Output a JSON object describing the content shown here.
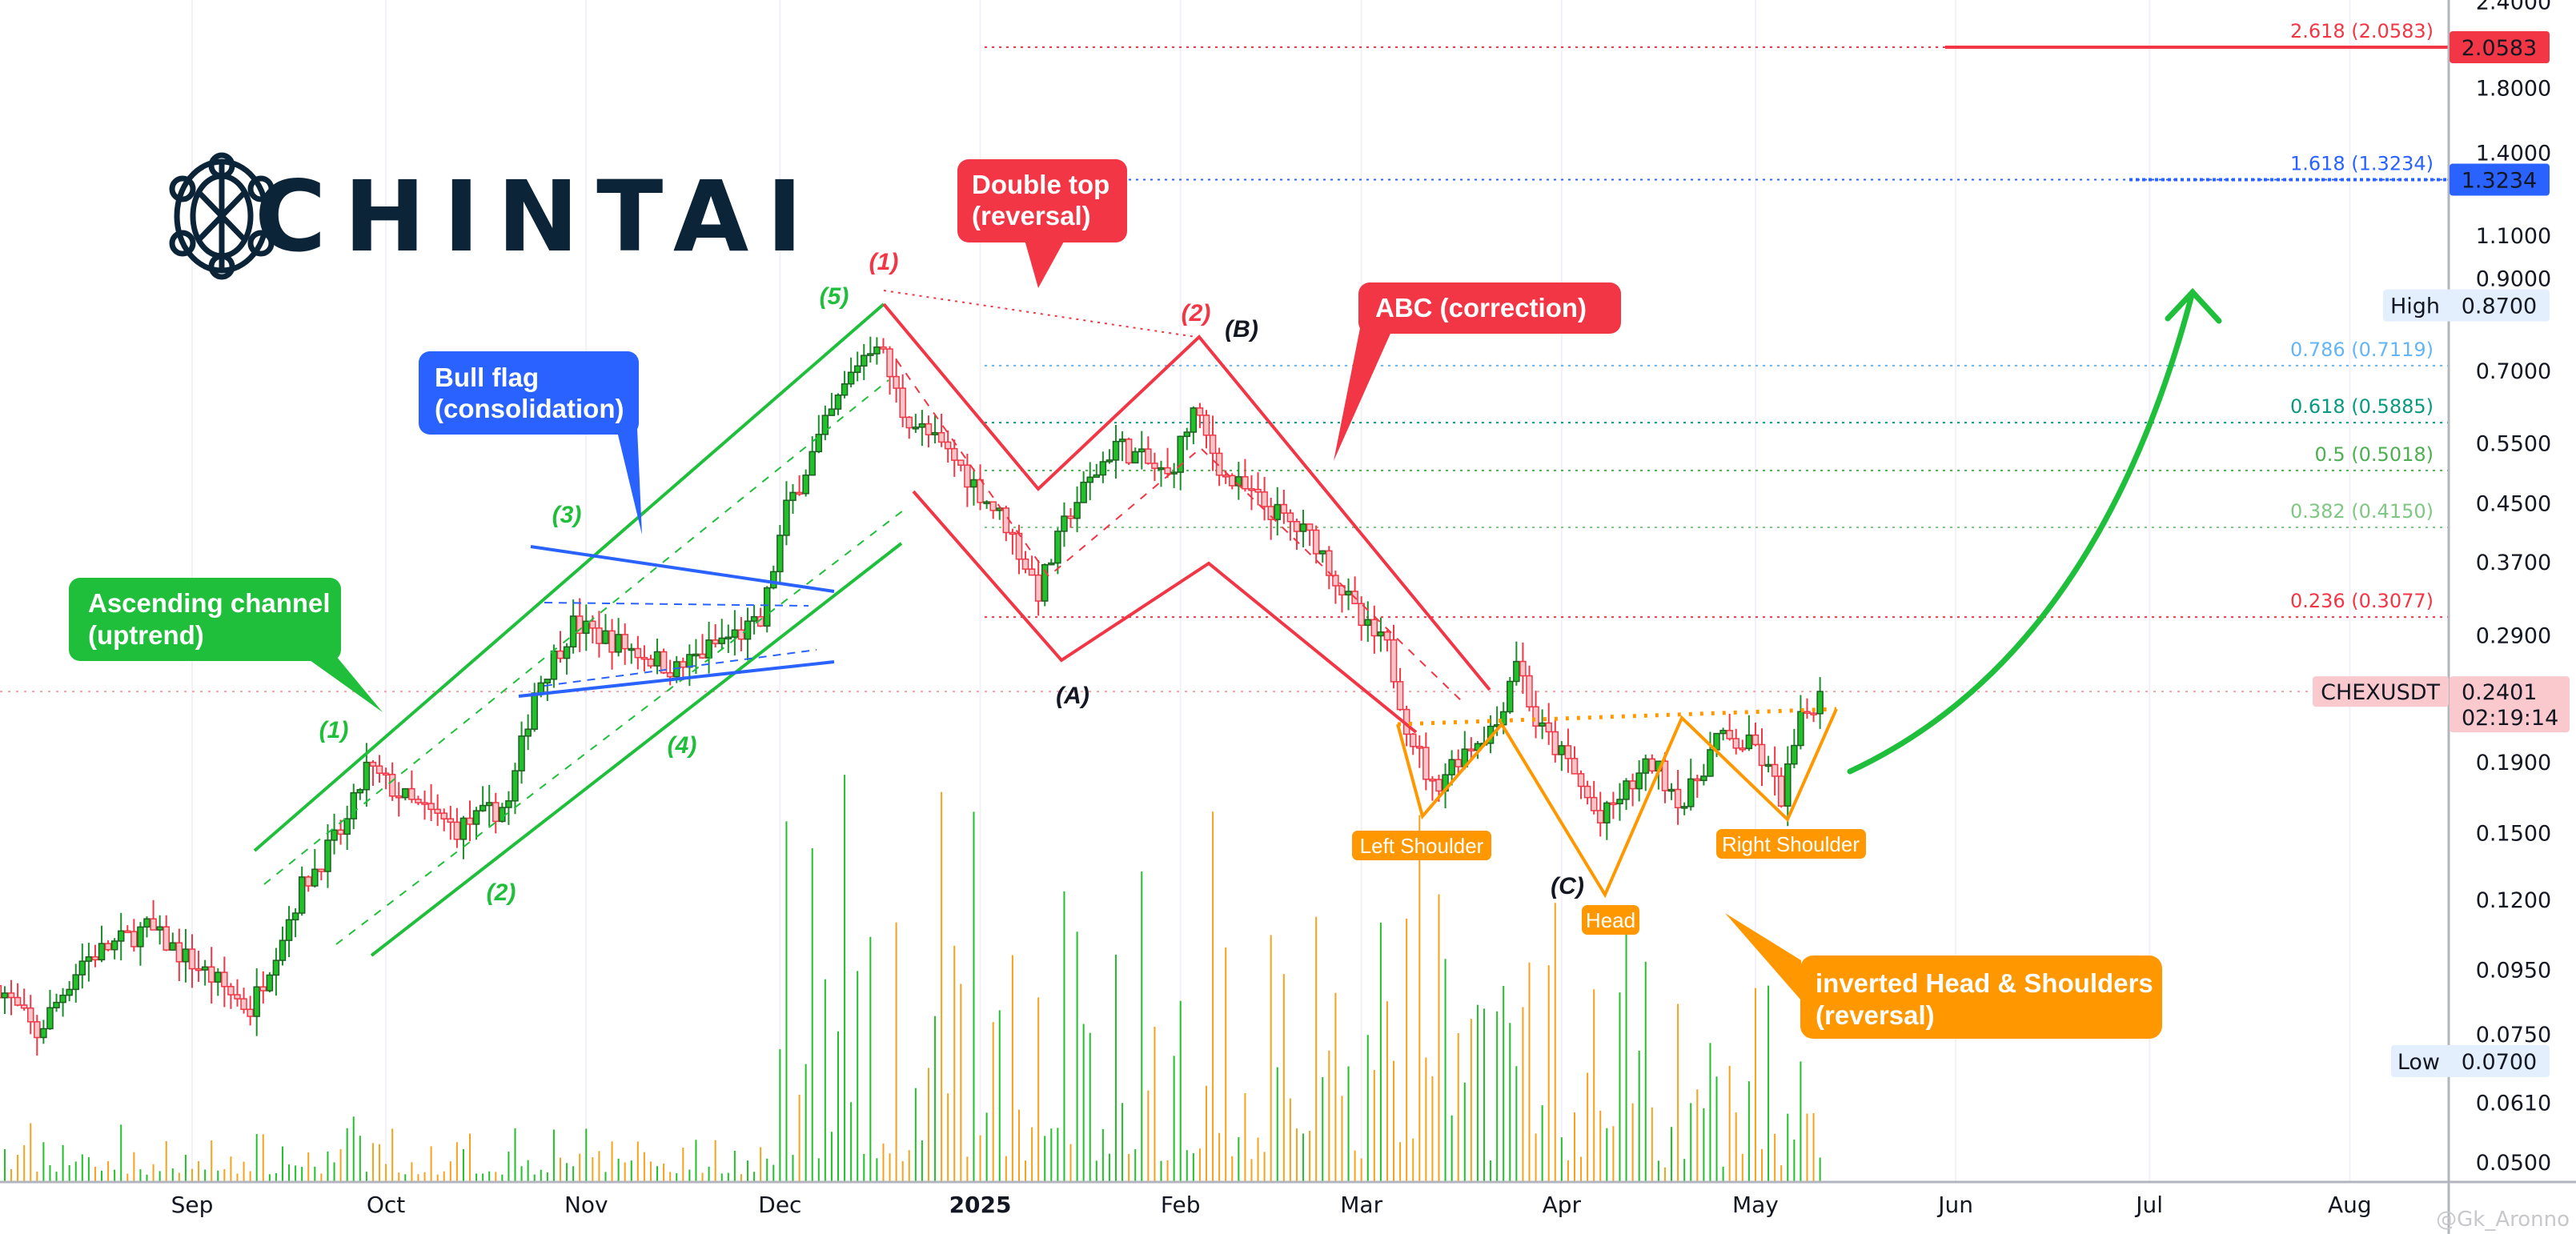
{
  "logo": {
    "text": "CHINTAI"
  },
  "watermark": "@Gk_Aronno",
  "chart_data": {
    "type": "candlestick",
    "symbol": "CHEXUSDT",
    "interval": "daily",
    "y_scale": "log",
    "ylim": [
      0.048,
      2.45
    ],
    "grid": "vertical month lines",
    "y_ticks": [
      "2.4000",
      "1.8000",
      "1.4000",
      "1.1000",
      "0.9000",
      "0.7000",
      "0.5500",
      "0.4500",
      "0.3700",
      "0.2900",
      "0.1900",
      "0.1500",
      "0.1200",
      "0.0950",
      "0.0750",
      "0.0610",
      "0.0500"
    ],
    "x_ticks": [
      {
        "label": "Sep",
        "date": "2024-09-01"
      },
      {
        "label": "Oct",
        "date": "2024-10-01"
      },
      {
        "label": "Nov",
        "date": "2024-11-01"
      },
      {
        "label": "Dec",
        "date": "2024-12-01"
      },
      {
        "label": "2025",
        "date": "2025-01-01",
        "bold": true
      },
      {
        "label": "Feb",
        "date": "2025-02-01"
      },
      {
        "label": "Mar",
        "date": "2025-03-01"
      },
      {
        "label": "Apr",
        "date": "2025-04-01"
      },
      {
        "label": "May",
        "date": "2025-05-01"
      },
      {
        "label": "Jun",
        "date": "2025-06-01"
      },
      {
        "label": "Jul",
        "date": "2025-07-01"
      },
      {
        "label": "Aug",
        "date": "2025-08-01"
      }
    ],
    "price_path": [
      [
        "2024-08-02",
        0.09
      ],
      [
        "2024-08-08",
        0.0765
      ],
      [
        "2024-08-15",
        0.098
      ],
      [
        "2024-08-25",
        0.109
      ],
      [
        "2024-09-05",
        0.091
      ],
      [
        "2024-09-10",
        0.083
      ],
      [
        "2024-09-18",
        0.125
      ],
      [
        "2024-09-25",
        0.155
      ],
      [
        "2024-09-28",
        0.186
      ],
      [
        "2024-10-05",
        0.165
      ],
      [
        "2024-10-12",
        0.152
      ],
      [
        "2024-10-20",
        0.165
      ],
      [
        "2024-10-24",
        0.241
      ],
      [
        "2024-10-30",
        0.3
      ],
      [
        "2024-11-08",
        0.277
      ],
      [
        "2024-11-15",
        0.258
      ],
      [
        "2024-11-22",
        0.285
      ],
      [
        "2024-11-28",
        0.3
      ],
      [
        "2024-12-02",
        0.44
      ],
      [
        "2024-12-08",
        0.58
      ],
      [
        "2024-12-13",
        0.72
      ],
      [
        "2024-12-16",
        0.78
      ],
      [
        "2024-12-20",
        0.61
      ],
      [
        "2024-12-28",
        0.52
      ],
      [
        "2025-01-05",
        0.42
      ],
      [
        "2025-01-10",
        0.335
      ],
      [
        "2025-01-15",
        0.44
      ],
      [
        "2025-01-22",
        0.55
      ],
      [
        "2025-01-30",
        0.49
      ],
      [
        "2025-02-03",
        0.61
      ],
      [
        "2025-02-08",
        0.49
      ],
      [
        "2025-02-15",
        0.44
      ],
      [
        "2025-02-22",
        0.395
      ],
      [
        "2025-03-01",
        0.3
      ],
      [
        "2025-03-05",
        0.277
      ],
      [
        "2025-03-08",
        0.216
      ],
      [
        "2025-03-12",
        0.174
      ],
      [
        "2025-03-16",
        0.194
      ],
      [
        "2025-03-22",
        0.216
      ],
      [
        "2025-03-25",
        0.27
      ],
      [
        "2025-03-28",
        0.216
      ],
      [
        "2025-04-02",
        0.189
      ],
      [
        "2025-04-07",
        0.155
      ],
      [
        "2025-04-10",
        0.169
      ],
      [
        "2025-04-15",
        0.189
      ],
      [
        "2025-04-20",
        0.165
      ],
      [
        "2025-04-25",
        0.205
      ],
      [
        "2025-05-01",
        0.199
      ],
      [
        "2025-05-05",
        0.169
      ],
      [
        "2025-05-08",
        0.216
      ],
      [
        "2025-05-11",
        0.2401
      ]
    ],
    "last_price": {
      "value": "0.2401",
      "price": 0.2401,
      "countdown": "02:19:14",
      "color": "#f9c9cd"
    },
    "high": {
      "label": "High",
      "value": "0.8700",
      "price": 0.87
    },
    "low": {
      "label": "Low",
      "value": "0.0700",
      "price": 0.07
    },
    "fib_levels": [
      {
        "label": "2.618 (2.0583)",
        "price": 2.0583,
        "badge": "2.0583",
        "color": "#f23645"
      },
      {
        "label": "1.618 (1.3234)",
        "price": 1.3234,
        "badge": "1.3234",
        "color": "#2962ff"
      },
      {
        "label": "0.786 (0.7119)",
        "price": 0.7119,
        "color": "#64b5f6"
      },
      {
        "label": "0.618 (0.5885)",
        "price": 0.5885,
        "color": "#089981"
      },
      {
        "label": "0.5 (0.5018)",
        "price": 0.5018,
        "color": "#4caf50"
      },
      {
        "label": "0.382 (0.4150)",
        "price": 0.415,
        "color": "#81c784"
      },
      {
        "label": "0.236 (0.3077)",
        "price": 0.3077,
        "color": "#f23645"
      }
    ],
    "colors": {
      "up": "#22c02a",
      "down": "#f23645",
      "vol_up": "#22c02a",
      "vol_down": "#f7a21b",
      "channel": "#1fbf3c",
      "flag": "#2962ff",
      "abc": "#f23645",
      "hs": "#ff9800"
    }
  },
  "annotations": {
    "ascending_channel": [
      "Ascending channel",
      "(uptrend)"
    ],
    "bull_flag": [
      "Bull flag",
      "(consolidation)"
    ],
    "double_top": [
      "Double top",
      "(reversal)"
    ],
    "abc": [
      "ABC (correction)"
    ],
    "inverted_hs": [
      "inverted Head & Shoulders",
      "(reversal)"
    ],
    "left_shoulder": "Left Shoulder",
    "head": "Head",
    "right_shoulder": "Right Shoulder",
    "waves": [
      {
        "text": "(1)",
        "color": "#1fbf3c"
      },
      {
        "text": "(2)",
        "color": "#1fbf3c"
      },
      {
        "text": "(3)",
        "color": "#1fbf3c"
      },
      {
        "text": "(4)",
        "color": "#1fbf3c"
      },
      {
        "text": "(5)",
        "color": "#1fbf3c"
      },
      {
        "text": "(1)",
        "color": "#f23645"
      },
      {
        "text": "(2)",
        "color": "#f23645"
      },
      {
        "text": "(A)",
        "color": "#131722"
      },
      {
        "text": "(B)",
        "color": "#131722"
      },
      {
        "text": "(C)",
        "color": "#131722"
      }
    ]
  }
}
